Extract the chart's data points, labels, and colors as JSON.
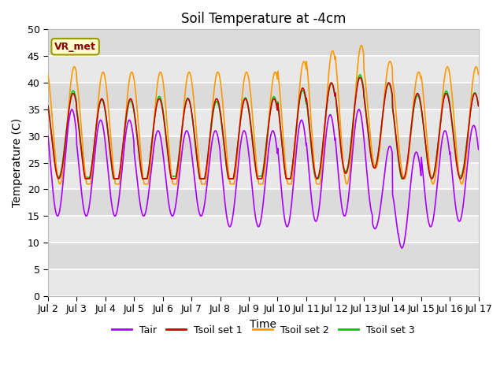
{
  "title": "Soil Temperature at -4cm",
  "xlabel": "Time",
  "ylabel": "Temperature (C)",
  "ylim": [
    0,
    50
  ],
  "yticks": [
    0,
    5,
    10,
    15,
    20,
    25,
    30,
    35,
    40,
    45,
    50
  ],
  "xtick_labels": [
    "Jul 2",
    "Jul 3",
    "Jul 4",
    "Jul 5",
    "Jul 6",
    "Jul 7",
    "Jul 8",
    "Jul 9",
    "Jul 10",
    "Jul 11",
    "Jul 12",
    "Jul 13",
    "Jul 14",
    "Jul 15",
    "Jul 16",
    "Jul 17"
  ],
  "annotation_text": "VR_met",
  "annotation_bg": "#ffffcc",
  "annotation_border": "#999900",
  "colors": {
    "Tair": "#aa00ff",
    "Tsoil1": "#cc0000",
    "Tsoil2": "#ff9900",
    "Tsoil3": "#00cc00"
  },
  "legend_labels": [
    "Tair",
    "Tsoil set 1",
    "Tsoil set 2",
    "Tsoil set 3"
  ],
  "plot_bg_color": "#e8e8e8",
  "grid_color": "#ffffff",
  "title_fontsize": 12,
  "label_fontsize": 10,
  "tick_fontsize": 9
}
